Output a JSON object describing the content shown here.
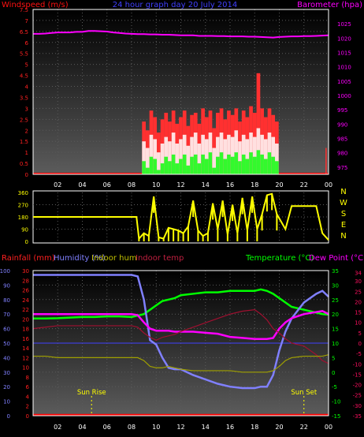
{
  "top": {
    "title": "24 hour graph day  20 July 2014",
    "left_label": "Windspeed (m/s)",
    "right_label": "Barometer (hpa)",
    "wind_ticks": [
      "0",
      "0.5",
      "1",
      "1.5",
      "2",
      "2.5",
      "3",
      "3.5",
      "4",
      "4.5",
      "5",
      "5.5",
      "6",
      "6.5",
      "7",
      "7.5"
    ],
    "baro_ticks": [
      "975",
      "980",
      "985",
      "990",
      "995",
      "1000",
      "1005",
      "1010",
      "1015",
      "1020",
      "1025"
    ],
    "hour_labels": [
      "02",
      "04",
      "06",
      "08",
      "10",
      "12",
      "14",
      "16",
      "18",
      "20",
      "22",
      "00"
    ]
  },
  "mid": {
    "dir_ticks": [
      "0",
      "90",
      "180",
      "270",
      "360"
    ],
    "compass": [
      "N",
      "W",
      "S",
      "E",
      "N"
    ]
  },
  "bottom": {
    "header_labels": {
      "rainfall": "Rainfall (mm)",
      "humidity": "Humidity (%)",
      "indoor_hum": "Indoor hum",
      "indoor_temp": "Indoor temp",
      "temperature": "Temperature (°C)",
      "dew_point": "Dew Point (°C)"
    },
    "humidity_ticks": [
      "0",
      "10",
      "20",
      "30",
      "40",
      "50",
      "60",
      "70",
      "80",
      "90",
      "100"
    ],
    "rain_ticks": [
      "0",
      "2",
      "4",
      "6",
      "8",
      "10",
      "12",
      "14",
      "16",
      "18",
      "20",
      "22",
      "24",
      "26",
      "28",
      "30"
    ],
    "temp_ticks": [
      "-15",
      "-10",
      "-5",
      "0",
      "5",
      "10",
      "15",
      "20",
      "25",
      "30",
      "35"
    ],
    "dew_ticks": [
      "-35",
      "-30",
      "-25",
      "-20",
      "-15",
      "-10",
      "-5",
      "0",
      "5",
      "10",
      "15",
      "20",
      "25",
      "30",
      "34"
    ],
    "sunrise": "Sun Rise",
    "sunset": "Sun Set",
    "hour_labels": [
      "02",
      "04",
      "06",
      "08",
      "10",
      "12",
      "14",
      "16",
      "18",
      "20",
      "22",
      "00"
    ]
  },
  "colors": {
    "wind_avg": "#ff0000",
    "wind_gust": "#ff3030",
    "wind_low": "#00ff00",
    "barometer": "#ff00ff",
    "direction": "#ffff00",
    "temperature": "#00ff00",
    "humidity": "#8080ff",
    "dew_point": "#ff00ff",
    "indoor_temp": "#a01030",
    "indoor_hum": "#a0a000",
    "rainfall": "#ff0000",
    "grid": "#5a5a5a"
  },
  "chart_data": [
    {
      "type": "bar",
      "title": "24 hour graph day  20 July 2014",
      "xlabel": "",
      "ylabel": "Windspeed (m/s)",
      "ylim": [
        0,
        7.5
      ],
      "y2label": "Barometer (hpa)",
      "y2lim": [
        972.5,
        1030
      ],
      "x_hours": [
        0,
        0.5,
        1,
        1.5,
        2,
        2.5,
        3,
        3.5,
        4,
        4.5,
        5,
        5.5,
        6,
        6.5,
        7,
        7.5,
        8,
        8.5,
        9,
        9.5,
        10,
        10.5,
        11,
        11.5,
        12,
        12.5,
        13,
        13.5,
        14,
        14.5,
        15,
        15.5,
        16,
        16.5,
        17,
        17.5,
        18,
        18.5,
        19,
        19.5,
        20,
        20.5,
        21,
        21.5,
        22,
        22.5,
        23,
        23.5,
        24
      ],
      "series": [
        {
          "name": "Barometer",
          "values": [
            1021.5,
            1021.5,
            1021.6,
            1021.8,
            1022,
            1022,
            1022,
            1022.2,
            1022.2,
            1022.5,
            1022.5,
            1022.4,
            1022.3,
            1022,
            1021.8,
            1021.6,
            1021.5,
            1021.4,
            1021.4,
            1021.3,
            1021.3,
            1021.2,
            1021.2,
            1021.1,
            1021,
            1021,
            1021,
            1020.8,
            1020.8,
            1020.8,
            1020.7,
            1020.7,
            1020.6,
            1020.6,
            1020.6,
            1020.5,
            1020.5,
            1020.4,
            1020.3,
            1020.2,
            1020.4,
            1020.5,
            1020.6,
            1020.6,
            1020.7,
            1020.7,
            1020.8,
            1020.9,
            1021
          ]
        }
      ],
      "wind_x": [
        9,
        9.3,
        9.6,
        9.9,
        10.2,
        10.5,
        10.8,
        11.1,
        11.4,
        11.7,
        12,
        12.3,
        12.6,
        12.9,
        13.2,
        13.5,
        13.8,
        14.1,
        14.4,
        14.7,
        15,
        15.3,
        15.6,
        15.9,
        16.2,
        16.5,
        16.8,
        17.1,
        17.4,
        17.7,
        18,
        18.3,
        18.6,
        18.9,
        19.2,
        19.5,
        19.8
      ],
      "wind_gust": [
        2.4,
        2.0,
        2.9,
        2.6,
        1.9,
        2.5,
        2.8,
        2.4,
        2.9,
        2.3,
        2.6,
        2.9,
        2.2,
        2.7,
        2.8,
        2.3,
        3.0,
        2.6,
        2.9,
        2.1,
        2.8,
        3.0,
        2.5,
        2.9,
        2.7,
        3.0,
        2.4,
        2.9,
        2.6,
        3.1,
        2.8,
        4.6,
        3.0,
        2.6,
        3.0,
        2.7,
        2.4
      ],
      "wind_avg": [
        1.5,
        1.2,
        1.8,
        1.6,
        1.0,
        1.4,
        1.7,
        1.5,
        1.9,
        1.4,
        1.6,
        1.8,
        1.3,
        1.7,
        1.9,
        1.4,
        1.8,
        1.6,
        1.9,
        1.2,
        1.7,
        1.9,
        1.6,
        1.8,
        1.7,
        2.0,
        1.5,
        1.8,
        1.6,
        1.9,
        1.7,
        2.1,
        1.8,
        1.6,
        1.9,
        1.7,
        1.4
      ],
      "wind_low": [
        0.6,
        0.3,
        0.8,
        0.7,
        0.2,
        0.5,
        0.8,
        0.6,
        0.9,
        0.5,
        0.7,
        0.9,
        0.4,
        0.8,
        0.9,
        0.5,
        0.9,
        0.7,
        1.0,
        0.3,
        0.8,
        1.0,
        0.7,
        0.9,
        0.8,
        1.0,
        0.6,
        0.9,
        0.7,
        1.0,
        0.8,
        1.1,
        0.9,
        0.7,
        1.0,
        0.8,
        0.6
      ]
    },
    {
      "type": "bar",
      "title": "",
      "ylabel": "",
      "ylim": [
        0,
        360
      ],
      "x_hours": [
        0,
        8.4,
        8.6,
        9,
        9.4,
        9.8,
        10.2,
        10.6,
        11,
        11.4,
        11.8,
        12.2,
        12.6,
        13,
        13.4,
        13.8,
        14.2,
        14.6,
        15,
        15.4,
        15.8,
        16.2,
        16.6,
        17,
        17.4,
        17.8,
        18.2,
        18.6,
        19,
        19.4,
        19.8,
        20.5,
        21,
        21.5,
        22,
        22.5,
        23,
        23.5,
        24
      ],
      "series": [
        {
          "name": "Wind direction",
          "values": [
            180,
            180,
            20,
            60,
            40,
            330,
            30,
            20,
            100,
            90,
            80,
            60,
            110,
            300,
            80,
            40,
            60,
            280,
            90,
            300,
            50,
            270,
            60,
            320,
            80,
            330,
            90,
            200,
            340,
            350,
            200,
            90,
            260,
            260,
            260,
            260,
            260,
            60,
            10
          ]
        }
      ]
    },
    {
      "type": "line",
      "title": "",
      "xlabel": "",
      "ylabel": "Humidity (%)",
      "ylim": [
        0,
        100
      ],
      "y2label": "Temperature (°C)",
      "y2lim": [
        -15,
        35
      ],
      "x_hours": [
        0,
        1,
        2,
        3,
        4,
        5,
        6,
        7,
        8,
        8.5,
        9,
        9.5,
        10,
        10.5,
        11,
        11.5,
        12,
        13,
        14,
        15,
        16,
        17,
        18,
        18.5,
        19,
        19.5,
        20,
        20.5,
        21,
        22,
        23,
        23.5,
        24
      ],
      "series": [
        {
          "name": "Temperature",
          "values": [
            18.5,
            18.5,
            18.6,
            18.8,
            19,
            19,
            19.2,
            19.2,
            19,
            19.5,
            20,
            21.5,
            23,
            24.5,
            25,
            25.5,
            26.5,
            27,
            27.5,
            27.5,
            28,
            28,
            28,
            28.5,
            28,
            27,
            25.5,
            24,
            22.5,
            21.5,
            20.5,
            20,
            19.8
          ]
        },
        {
          "name": "Humidity",
          "values": [
            97,
            97,
            97,
            97,
            97,
            97,
            97,
            97,
            97,
            96,
            80,
            52,
            49,
            40,
            33,
            32,
            32,
            28,
            25,
            22,
            20,
            19,
            19,
            20,
            20,
            28,
            45,
            58,
            67,
            78,
            84,
            86,
            82
          ]
        },
        {
          "name": "Dew Point",
          "values": [
            14,
            14,
            14,
            14,
            14,
            14,
            14,
            14,
            14,
            13.5,
            10,
            7,
            6,
            6,
            6,
            5.5,
            5.5,
            5.5,
            5,
            4.5,
            3,
            2.5,
            2,
            2,
            2,
            2.5,
            7,
            10,
            12,
            14,
            15,
            15.5,
            14
          ]
        },
        {
          "name": "Indoor temp",
          "values": [
            15,
            15.5,
            16,
            16,
            16,
            16,
            16,
            16,
            16,
            15.5,
            13.5,
            12,
            11,
            12,
            12.5,
            13,
            14,
            15.5,
            17,
            18.5,
            20,
            21,
            21.5,
            20,
            18,
            15,
            13.5,
            11.5,
            10,
            9,
            6,
            4,
            3
          ]
        },
        {
          "name": "Indoor hum",
          "values": [
            41,
            41,
            40,
            40,
            40,
            40,
            40,
            40,
            40,
            40,
            38,
            34,
            33,
            33,
            34,
            33,
            32,
            31,
            31,
            31,
            31,
            30,
            30,
            30,
            30,
            31,
            34,
            38,
            40,
            41,
            41,
            41,
            42
          ]
        },
        {
          "name": "Rainfall",
          "values": [
            0,
            0,
            0,
            0,
            0,
            0,
            0,
            0,
            0,
            0,
            0,
            0,
            0,
            0,
            0,
            0,
            0,
            0,
            0,
            0,
            0,
            0,
            0,
            0,
            0,
            0,
            0,
            0,
            0,
            0,
            0,
            0,
            0
          ]
        }
      ],
      "sunrise_hour": 4.75,
      "sunset_hour": 22
    }
  ]
}
